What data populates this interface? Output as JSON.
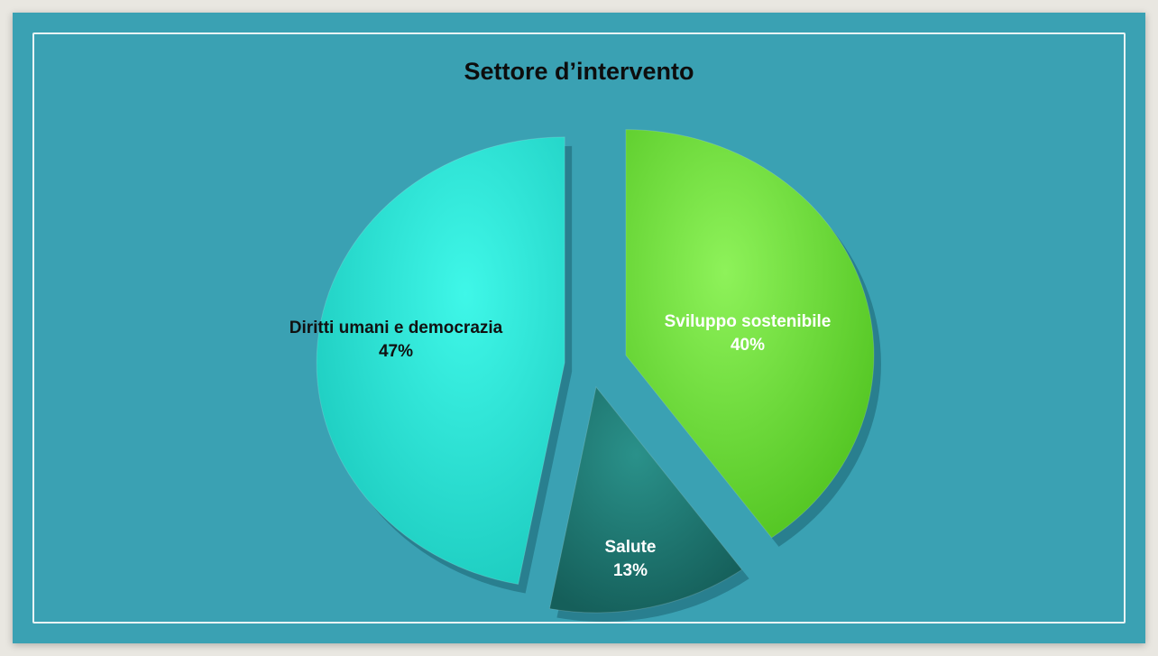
{
  "chart_data": {
    "type": "pie",
    "title": "Settore d’intervento",
    "categories": [
      "Sviluppo sostenibile",
      "Salute",
      "Diritti umani e democrazia"
    ],
    "values": [
      40,
      13,
      47
    ],
    "value_labels": [
      "40%",
      "13%",
      "47%"
    ],
    "colors": [
      "#6fe33a",
      "#1c7a73",
      "#27ebdc"
    ],
    "label_colors": [
      "#ffffff",
      "#ffffff",
      "#111111"
    ],
    "exploded": true,
    "legend": "none"
  },
  "colors": {
    "background": "#3aa1b3",
    "border": "#e8f3f4"
  }
}
